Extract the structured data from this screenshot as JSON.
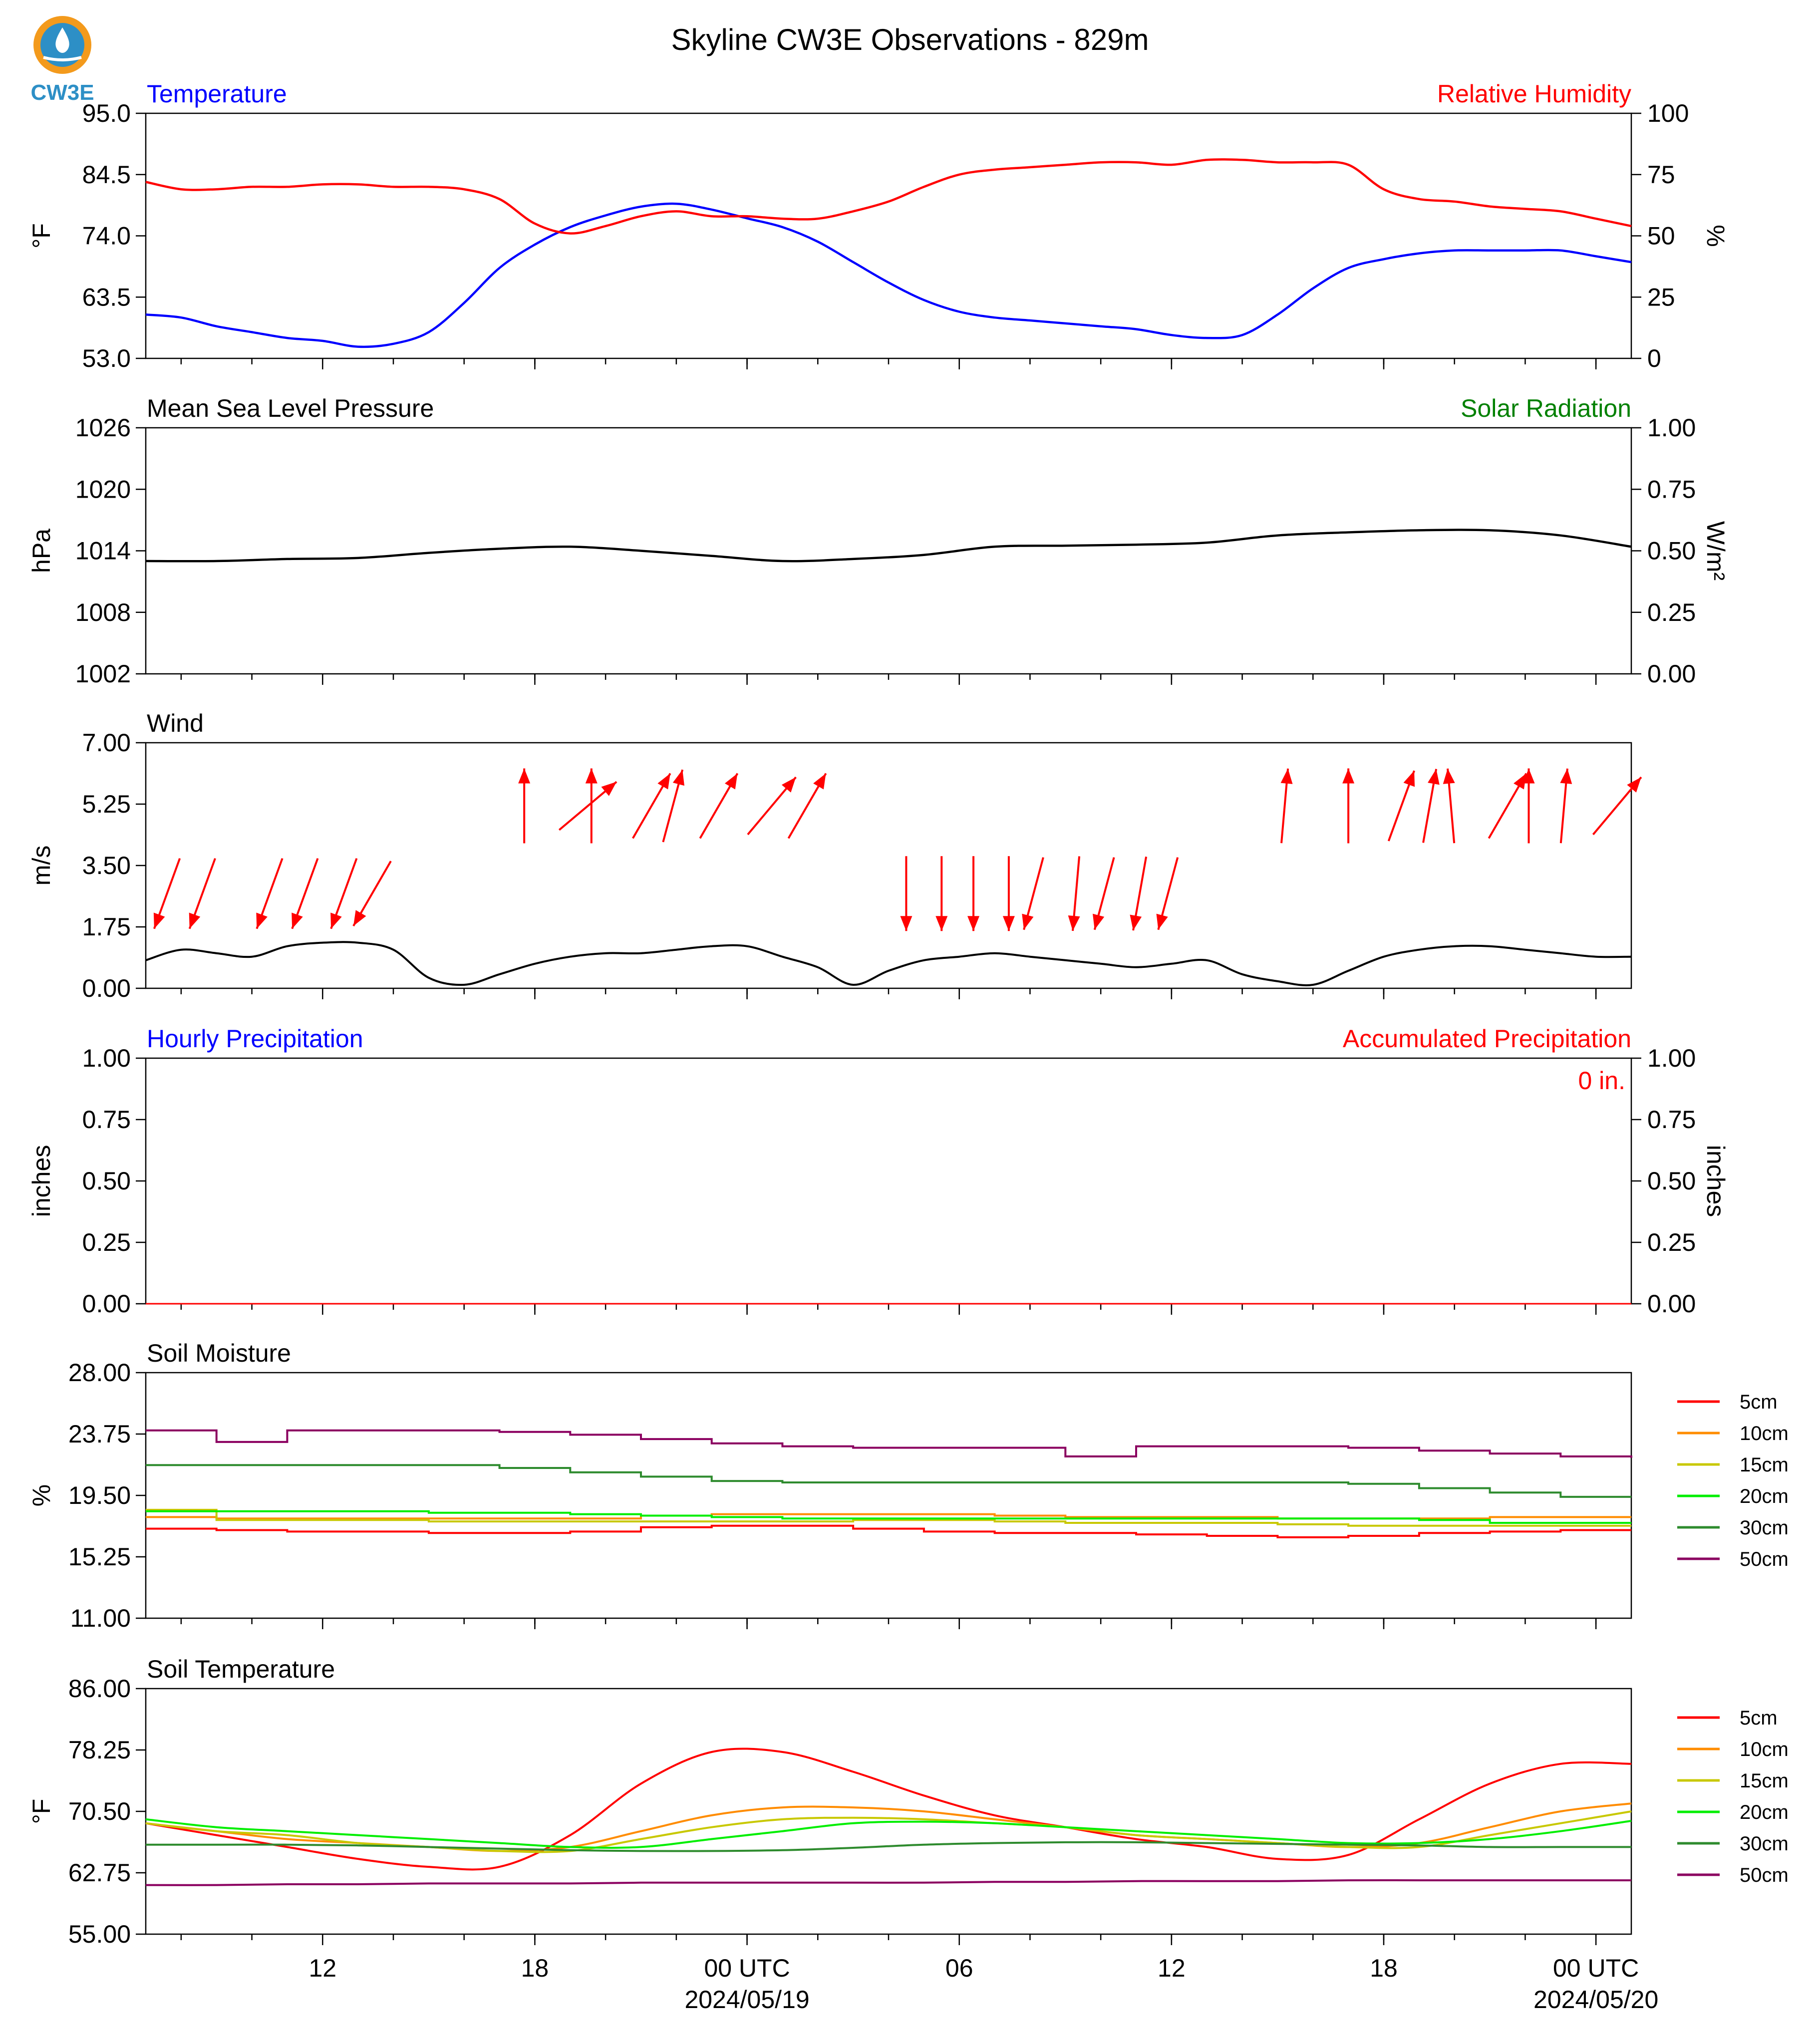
{
  "header": {
    "title": "Skyline CW3E Observations - 829m",
    "logo_text": "CW3E"
  },
  "colors": {
    "temperature": "#0000ff",
    "humidity": "#ff0000",
    "pressure": "#000000",
    "solar": "#008000",
    "wind_arrow": "#ff0000",
    "wind_line": "#000000",
    "soil_5cm": "#ff0000",
    "soil_10cm": "#ff8c00",
    "soil_15cm": "#c8c800",
    "soil_20cm": "#00ee00",
    "soil_30cm": "#2e8b2e",
    "soil_50cm": "#8b0060"
  },
  "time_axis": {
    "start_hour": 7,
    "end_hour": 49,
    "major_ticks": [
      {
        "hour": 12,
        "label": "12",
        "sub": ""
      },
      {
        "hour": 18,
        "label": "18",
        "sub": ""
      },
      {
        "hour": 24,
        "label": "00 UTC",
        "sub": "2024/05/19"
      },
      {
        "hour": 30,
        "label": "06",
        "sub": ""
      },
      {
        "hour": 36,
        "label": "12",
        "sub": ""
      },
      {
        "hour": 42,
        "label": "18",
        "sub": ""
      },
      {
        "hour": 48,
        "label": "00 UTC",
        "sub": "2024/05/20"
      }
    ]
  },
  "panels": {
    "temperature": {
      "left_title": "Temperature",
      "right_title": "Relative Humidity",
      "left_unit": "°F",
      "right_unit": "%",
      "left_ticks": [
        "95.0",
        "84.5",
        "74.0",
        "63.5",
        "53.0"
      ],
      "right_ticks": [
        "100",
        "75",
        "50",
        "25",
        "0"
      ]
    },
    "pressure": {
      "left_title": "Mean Sea Level Pressure",
      "right_title": "Solar Radiation",
      "left_unit": "hPa",
      "right_unit": "W/m²",
      "left_ticks": [
        "1026",
        "1020",
        "1014",
        "1008",
        "1002"
      ],
      "right_ticks": [
        "1.00",
        "0.75",
        "0.50",
        "0.25",
        "0.00"
      ]
    },
    "wind": {
      "left_title": "Wind",
      "left_unit": "m/s",
      "left_ticks": [
        "7.00",
        "5.25",
        "3.50",
        "1.75",
        "0.00"
      ]
    },
    "precip": {
      "left_title": "Hourly Precipitation",
      "right_title": "Accumulated Precipitation",
      "left_unit": "inches",
      "right_unit": "inches",
      "left_ticks": [
        "1.00",
        "0.75",
        "0.50",
        "0.25",
        "0.00"
      ],
      "right_ticks": [
        "1.00",
        "0.75",
        "0.50",
        "0.25",
        "0.00"
      ],
      "accum_label": "0 in."
    },
    "soil_moisture": {
      "left_title": "Soil Moisture",
      "left_unit": "%",
      "left_ticks": [
        "28.00",
        "23.75",
        "19.50",
        "15.25",
        "11.00"
      ]
    },
    "soil_temp": {
      "left_title": "Soil Temperature",
      "left_unit": "°F",
      "left_ticks": [
        "86.00",
        "78.25",
        "70.50",
        "62.75",
        "55.00"
      ]
    }
  },
  "legend": [
    "5cm",
    "10cm",
    "15cm",
    "20cm",
    "30cm",
    "50cm"
  ],
  "chart_data": [
    {
      "type": "line",
      "title": "Temperature",
      "ylabel": "°F",
      "ylim": [
        53.0,
        95.0
      ],
      "x_hours": [
        7,
        8,
        9,
        10,
        11,
        12,
        13,
        14,
        15,
        16,
        17,
        18,
        19,
        20,
        21,
        22,
        23,
        24,
        25,
        26,
        27,
        28,
        29,
        30,
        31,
        32,
        33,
        34,
        35,
        36,
        37,
        38,
        39,
        40,
        41,
        42,
        43,
        44,
        45,
        46,
        47,
        48,
        49
      ],
      "series": [
        {
          "name": "Temperature",
          "values": [
            60.5,
            60.0,
            58.5,
            57.5,
            56.5,
            56.0,
            55.0,
            55.5,
            57.5,
            62.5,
            68.5,
            72.5,
            75.5,
            77.5,
            79.0,
            79.5,
            78.5,
            77.0,
            75.5,
            73.0,
            69.5,
            66.0,
            63.0,
            61.0,
            60.0,
            59.5,
            59.0,
            58.5,
            58.0,
            57.0,
            56.5,
            57.0,
            60.5,
            65.0,
            68.5,
            70.0,
            71.0,
            71.5,
            71.5,
            71.5,
            71.5,
            70.5,
            69.5
          ]
        },
        {
          "name": "Relative Humidity",
          "values": [
            72,
            69,
            69,
            70,
            70,
            71,
            71,
            70,
            70,
            69,
            65,
            55,
            51,
            54,
            58,
            60,
            58,
            58,
            57,
            57,
            60,
            64,
            70,
            75,
            77,
            78,
            79,
            80,
            80,
            79,
            81,
            81,
            80,
            80,
            79,
            69,
            65,
            64,
            62,
            61,
            60,
            57,
            54
          ]
        }
      ]
    },
    {
      "type": "line",
      "title": "Mean Sea Level Pressure",
      "ylabel": "hPa",
      "ylim": [
        1002,
        1026
      ],
      "x_hours": [
        7,
        9,
        11,
        13,
        15,
        17,
        19,
        21,
        23,
        25,
        27,
        29,
        31,
        33,
        35,
        37,
        39,
        41,
        43,
        45,
        47,
        49
      ],
      "series": [
        {
          "name": "Pressure",
          "values": [
            1013.0,
            1013.0,
            1013.2,
            1013.3,
            1013.8,
            1014.2,
            1014.4,
            1014.0,
            1013.5,
            1013.0,
            1013.2,
            1013.6,
            1014.4,
            1014.5,
            1014.6,
            1014.8,
            1015.5,
            1015.8,
            1016.0,
            1016.0,
            1015.5,
            1014.4
          ]
        }
      ]
    },
    {
      "type": "line",
      "title": "Wind",
      "ylabel": "m/s",
      "ylim": [
        0,
        7
      ],
      "x_hours": [
        7,
        8,
        9,
        10,
        11,
        12,
        13,
        14,
        15,
        16,
        17,
        18,
        19,
        20,
        21,
        22,
        23,
        24,
        25,
        26,
        27,
        28,
        29,
        30,
        31,
        32,
        33,
        34,
        35,
        36,
        37,
        38,
        39,
        40,
        41,
        42,
        43,
        44,
        45,
        46,
        47,
        48,
        49
      ],
      "series": [
        {
          "name": "Wind Speed",
          "values": [
            0.8,
            1.1,
            1.0,
            0.9,
            1.2,
            1.3,
            1.3,
            1.1,
            0.3,
            0.1,
            0.4,
            0.7,
            0.9,
            1.0,
            1.0,
            1.1,
            1.2,
            1.2,
            0.9,
            0.6,
            0.1,
            0.5,
            0.8,
            0.9,
            1.0,
            0.9,
            0.8,
            0.7,
            0.6,
            0.7,
            0.8,
            0.4,
            0.2,
            0.1,
            0.5,
            0.9,
            1.1,
            1.2,
            1.2,
            1.1,
            1.0,
            0.9,
            0.9
          ]
        }
      ],
      "arrows": [
        {
          "hour": 7.6,
          "dir_deg": 20,
          "y": 2.7
        },
        {
          "hour": 8.6,
          "dir_deg": 20,
          "y": 2.7
        },
        {
          "hour": 10.5,
          "dir_deg": 20,
          "y": 2.7
        },
        {
          "hour": 11.5,
          "dir_deg": 20,
          "y": 2.7
        },
        {
          "hour": 12.6,
          "dir_deg": 20,
          "y": 2.7
        },
        {
          "hour": 13.4,
          "dir_deg": 30,
          "y": 2.7
        },
        {
          "hour": 17.7,
          "dir_deg": 180,
          "y": 5.2
        },
        {
          "hour": 19.5,
          "dir_deg": 230,
          "y": 5.2
        },
        {
          "hour": 19.6,
          "dir_deg": 180,
          "y": 5.2
        },
        {
          "hour": 21.3,
          "dir_deg": 210,
          "y": 5.2
        },
        {
          "hour": 21.9,
          "dir_deg": 195,
          "y": 5.2
        },
        {
          "hour": 23.2,
          "dir_deg": 210,
          "y": 5.2
        },
        {
          "hour": 24.7,
          "dir_deg": 220,
          "y": 5.2
        },
        {
          "hour": 25.7,
          "dir_deg": 210,
          "y": 5.2
        },
        {
          "hour": 28.5,
          "dir_deg": 0,
          "y": 2.7
        },
        {
          "hour": 29.5,
          "dir_deg": 0,
          "y": 2.7
        },
        {
          "hour": 30.4,
          "dir_deg": 0,
          "y": 2.7
        },
        {
          "hour": 31.4,
          "dir_deg": 0,
          "y": 2.7
        },
        {
          "hour": 32.1,
          "dir_deg": 15,
          "y": 2.7
        },
        {
          "hour": 33.3,
          "dir_deg": 5,
          "y": 2.7
        },
        {
          "hour": 34.1,
          "dir_deg": 15,
          "y": 2.7
        },
        {
          "hour": 35.1,
          "dir_deg": 10,
          "y": 2.7
        },
        {
          "hour": 35.9,
          "dir_deg": 15,
          "y": 2.7
        },
        {
          "hour": 39.2,
          "dir_deg": 185,
          "y": 5.2
        },
        {
          "hour": 41.0,
          "dir_deg": 180,
          "y": 5.2
        },
        {
          "hour": 42.5,
          "dir_deg": 200,
          "y": 5.2
        },
        {
          "hour": 43.3,
          "dir_deg": 190,
          "y": 5.2
        },
        {
          "hour": 43.9,
          "dir_deg": 175,
          "y": 5.2
        },
        {
          "hour": 45.5,
          "dir_deg": 210,
          "y": 5.2
        },
        {
          "hour": 46.1,
          "dir_deg": 180,
          "y": 5.2
        },
        {
          "hour": 47.1,
          "dir_deg": 185,
          "y": 5.2
        },
        {
          "hour": 48.6,
          "dir_deg": 220,
          "y": 5.2
        }
      ]
    },
    {
      "type": "line",
      "title": "Hourly Precipitation",
      "ylabel": "inches",
      "ylim": [
        0,
        1
      ],
      "x_hours": [
        7,
        49
      ],
      "series": [
        {
          "name": "Hourly Precipitation",
          "values": [
            0,
            0
          ]
        }
      ]
    },
    {
      "type": "line",
      "title": "Soil Moisture",
      "ylabel": "%",
      "ylim": [
        11.0,
        28.0
      ],
      "x_hours": [
        7,
        9,
        11,
        13,
        15,
        17,
        19,
        21,
        23,
        25,
        27,
        29,
        31,
        33,
        35,
        37,
        39,
        41,
        43,
        45,
        47,
        49
      ],
      "series": [
        {
          "name": "5cm",
          "values": [
            17.2,
            17.1,
            17.0,
            17.0,
            16.9,
            16.9,
            17.0,
            17.3,
            17.4,
            17.4,
            17.2,
            17.0,
            16.9,
            16.9,
            16.8,
            16.7,
            16.6,
            16.7,
            16.9,
            17.0,
            17.1,
            17.1
          ]
        },
        {
          "name": "10cm",
          "values": [
            18.0,
            17.9,
            17.9,
            17.9,
            17.9,
            17.9,
            17.9,
            18.1,
            18.2,
            18.2,
            18.2,
            18.2,
            18.1,
            18.0,
            18.0,
            18.0,
            17.9,
            17.9,
            17.9,
            18.0,
            18.0,
            18.0
          ]
        },
        {
          "name": "15cm",
          "values": [
            18.5,
            17.8,
            17.8,
            17.8,
            17.7,
            17.7,
            17.7,
            17.7,
            17.7,
            17.7,
            17.8,
            17.8,
            17.7,
            17.6,
            17.6,
            17.6,
            17.5,
            17.4,
            17.4,
            17.4,
            17.4,
            17.4
          ]
        },
        {
          "name": "20cm",
          "values": [
            18.4,
            18.4,
            18.4,
            18.4,
            18.3,
            18.3,
            18.2,
            18.1,
            18.0,
            17.9,
            17.9,
            17.9,
            17.9,
            17.9,
            17.9,
            17.9,
            17.9,
            17.9,
            17.8,
            17.6,
            17.6,
            17.6
          ]
        },
        {
          "name": "30cm",
          "values": [
            21.6,
            21.6,
            21.6,
            21.6,
            21.6,
            21.4,
            21.1,
            20.8,
            20.5,
            20.4,
            20.4,
            20.4,
            20.4,
            20.4,
            20.4,
            20.4,
            20.4,
            20.3,
            20.0,
            19.7,
            19.4,
            19.4
          ]
        },
        {
          "name": "50cm",
          "values": [
            24.0,
            23.2,
            24.0,
            24.0,
            24.0,
            23.9,
            23.7,
            23.4,
            23.1,
            22.9,
            22.8,
            22.8,
            22.8,
            22.2,
            22.9,
            22.9,
            22.9,
            22.8,
            22.6,
            22.4,
            22.2,
            22.1
          ]
        }
      ]
    },
    {
      "type": "line",
      "title": "Soil Temperature",
      "ylabel": "°F",
      "ylim": [
        55.0,
        86.0
      ],
      "x_hours": [
        7,
        9,
        11,
        13,
        15,
        17,
        19,
        21,
        23,
        25,
        27,
        29,
        31,
        33,
        35,
        37,
        39,
        41,
        43,
        45,
        47,
        49
      ],
      "series": [
        {
          "name": "5cm",
          "values": [
            69.0,
            67.5,
            66.0,
            64.5,
            63.5,
            63.5,
            67.5,
            74.0,
            78.0,
            78.0,
            75.5,
            72.5,
            70.0,
            68.5,
            67.0,
            66.0,
            64.5,
            65.0,
            69.5,
            74.0,
            76.5,
            76.5
          ]
        },
        {
          "name": "10cm",
          "values": [
            69.0,
            68.0,
            67.0,
            66.5,
            66.0,
            65.5,
            66.0,
            68.0,
            70.0,
            71.0,
            71.0,
            70.5,
            69.5,
            68.5,
            67.5,
            67.0,
            66.5,
            66.0,
            66.5,
            68.5,
            70.5,
            71.5
          ]
        },
        {
          "name": "15cm",
          "values": [
            69.0,
            68.0,
            67.5,
            66.5,
            66.0,
            65.5,
            65.5,
            67.0,
            68.5,
            69.5,
            69.7,
            69.5,
            69.0,
            68.5,
            67.5,
            67.0,
            66.5,
            66.0,
            66.0,
            67.5,
            69.0,
            70.5
          ]
        },
        {
          "name": "20cm",
          "values": [
            69.5,
            68.5,
            68.0,
            67.5,
            67.0,
            66.5,
            66.0,
            66.0,
            67.0,
            68.0,
            69.0,
            69.2,
            69.0,
            68.5,
            68.0,
            67.5,
            67.0,
            66.5,
            66.5,
            67.0,
            68.0,
            69.3
          ]
        },
        {
          "name": "30cm",
          "values": [
            66.3,
            66.3,
            66.3,
            66.2,
            66.0,
            65.8,
            65.6,
            65.5,
            65.5,
            65.6,
            65.9,
            66.3,
            66.5,
            66.6,
            66.6,
            66.5,
            66.4,
            66.3,
            66.2,
            66.0,
            66.0,
            66.0
          ]
        },
        {
          "name": "50cm",
          "values": [
            61.2,
            61.2,
            61.3,
            61.3,
            61.4,
            61.4,
            61.4,
            61.5,
            61.5,
            61.5,
            61.5,
            61.5,
            61.6,
            61.6,
            61.7,
            61.7,
            61.7,
            61.8,
            61.8,
            61.8,
            61.8,
            61.8
          ]
        }
      ]
    }
  ]
}
